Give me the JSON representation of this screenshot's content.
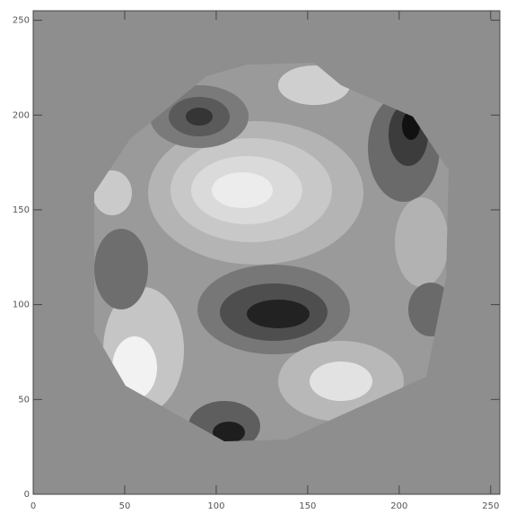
{
  "chart_data": {
    "type": "image",
    "xlim": [
      0,
      255
    ],
    "ylim": [
      0,
      255
    ],
    "xticks": [
      0,
      50,
      100,
      150,
      200,
      250
    ],
    "yticks": [
      0,
      50,
      100,
      150,
      200,
      250
    ],
    "background": "#8e8e8e",
    "axis_color": "#444444"
  }
}
